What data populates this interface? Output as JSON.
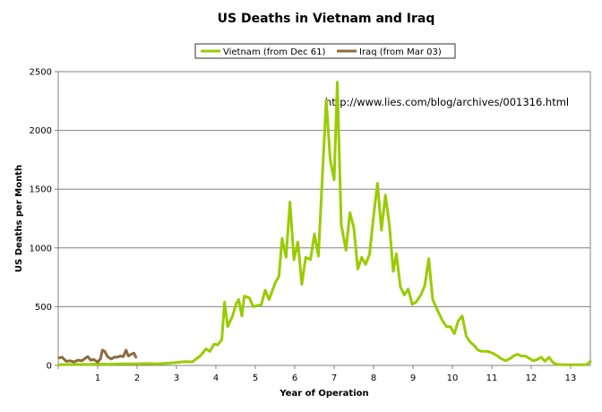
{
  "chart_data": {
    "type": "line",
    "title": "US Deaths in Vietnam and Iraq",
    "xlabel": "Year of Operation",
    "ylabel": "US Deaths per Month",
    "xlim": [
      0,
      13.5
    ],
    "ylim": [
      0,
      2500
    ],
    "x_ticks": [
      1,
      2,
      3,
      4,
      5,
      6,
      7,
      8,
      9,
      10,
      11,
      12,
      13
    ],
    "y_ticks": [
      0,
      500,
      1000,
      1500,
      2000,
      2500
    ],
    "grid": "horizontal",
    "legend_position": "top-center",
    "annotation": "http://www.lies.com/blog/archives/001316.html",
    "series": [
      {
        "name": "Vietnam (from Dec 61)",
        "color": "#99cc00",
        "points": [
          [
            0.02,
            5
          ],
          [
            0.25,
            8
          ],
          [
            0.5,
            10
          ],
          [
            0.75,
            8
          ],
          [
            1.0,
            12
          ],
          [
            1.25,
            10
          ],
          [
            1.5,
            12
          ],
          [
            1.75,
            14
          ],
          [
            2.0,
            14
          ],
          [
            2.25,
            16
          ],
          [
            2.5,
            14
          ],
          [
            2.75,
            18
          ],
          [
            3.0,
            25
          ],
          [
            3.2,
            32
          ],
          [
            3.4,
            30
          ],
          [
            3.6,
            80
          ],
          [
            3.75,
            140
          ],
          [
            3.85,
            120
          ],
          [
            3.95,
            180
          ],
          [
            4.05,
            175
          ],
          [
            4.15,
            220
          ],
          [
            4.22,
            540
          ],
          [
            4.3,
            330
          ],
          [
            4.42,
            420
          ],
          [
            4.52,
            530
          ],
          [
            4.58,
            560
          ],
          [
            4.66,
            420
          ],
          [
            4.72,
            590
          ],
          [
            4.85,
            575
          ],
          [
            4.95,
            500
          ],
          [
            5.05,
            510
          ],
          [
            5.15,
            515
          ],
          [
            5.25,
            640
          ],
          [
            5.35,
            560
          ],
          [
            5.5,
            700
          ],
          [
            5.6,
            760
          ],
          [
            5.68,
            1080
          ],
          [
            5.78,
            920
          ],
          [
            5.88,
            1390
          ],
          [
            5.98,
            900
          ],
          [
            6.08,
            1050
          ],
          [
            6.18,
            690
          ],
          [
            6.28,
            920
          ],
          [
            6.4,
            900
          ],
          [
            6.5,
            1120
          ],
          [
            6.6,
            930
          ],
          [
            6.7,
            1600
          ],
          [
            6.8,
            2260
          ],
          [
            6.9,
            1750
          ],
          [
            7.0,
            1580
          ],
          [
            7.08,
            2410
          ],
          [
            7.18,
            1200
          ],
          [
            7.3,
            980
          ],
          [
            7.4,
            1300
          ],
          [
            7.5,
            1170
          ],
          [
            7.6,
            820
          ],
          [
            7.7,
            920
          ],
          [
            7.8,
            860
          ],
          [
            7.9,
            950
          ],
          [
            8.0,
            1270
          ],
          [
            8.1,
            1550
          ],
          [
            8.2,
            1150
          ],
          [
            8.3,
            1450
          ],
          [
            8.4,
            1200
          ],
          [
            8.5,
            800
          ],
          [
            8.58,
            950
          ],
          [
            8.68,
            670
          ],
          [
            8.78,
            600
          ],
          [
            8.88,
            650
          ],
          [
            8.98,
            520
          ],
          [
            9.08,
            540
          ],
          [
            9.2,
            600
          ],
          [
            9.3,
            680
          ],
          [
            9.4,
            910
          ],
          [
            9.5,
            560
          ],
          [
            9.62,
            470
          ],
          [
            9.75,
            380
          ],
          [
            9.85,
            330
          ],
          [
            9.95,
            330
          ],
          [
            10.05,
            270
          ],
          [
            10.15,
            380
          ],
          [
            10.25,
            420
          ],
          [
            10.35,
            250
          ],
          [
            10.45,
            200
          ],
          [
            10.55,
            170
          ],
          [
            10.65,
            130
          ],
          [
            10.75,
            120
          ],
          [
            10.9,
            120
          ],
          [
            11.05,
            100
          ],
          [
            11.15,
            80
          ],
          [
            11.25,
            55
          ],
          [
            11.35,
            40
          ],
          [
            11.45,
            55
          ],
          [
            11.55,
            80
          ],
          [
            11.65,
            95
          ],
          [
            11.75,
            80
          ],
          [
            11.85,
            80
          ],
          [
            11.95,
            60
          ],
          [
            12.05,
            40
          ],
          [
            12.15,
            50
          ],
          [
            12.25,
            70
          ],
          [
            12.35,
            35
          ],
          [
            12.45,
            70
          ],
          [
            12.55,
            25
          ],
          [
            12.65,
            10
          ],
          [
            12.8,
            5
          ],
          [
            13.0,
            5
          ],
          [
            13.2,
            5
          ],
          [
            13.35,
            5
          ],
          [
            13.42,
            10
          ],
          [
            13.5,
            35
          ]
        ]
      },
      {
        "name": "Iraq (from Mar 03)",
        "color": "#8c6b3f",
        "points": [
          [
            0.02,
            65
          ],
          [
            0.1,
            70
          ],
          [
            0.2,
            35
          ],
          [
            0.3,
            40
          ],
          [
            0.4,
            30
          ],
          [
            0.5,
            45
          ],
          [
            0.6,
            40
          ],
          [
            0.7,
            65
          ],
          [
            0.75,
            75
          ],
          [
            0.82,
            45
          ],
          [
            0.9,
            50
          ],
          [
            1.0,
            30
          ],
          [
            1.07,
            55
          ],
          [
            1.12,
            130
          ],
          [
            1.18,
            120
          ],
          [
            1.25,
            75
          ],
          [
            1.35,
            55
          ],
          [
            1.42,
            70
          ],
          [
            1.5,
            70
          ],
          [
            1.57,
            80
          ],
          [
            1.65,
            75
          ],
          [
            1.72,
            130
          ],
          [
            1.78,
            80
          ],
          [
            1.85,
            95
          ],
          [
            1.92,
            105
          ],
          [
            1.97,
            70
          ]
        ]
      }
    ]
  }
}
